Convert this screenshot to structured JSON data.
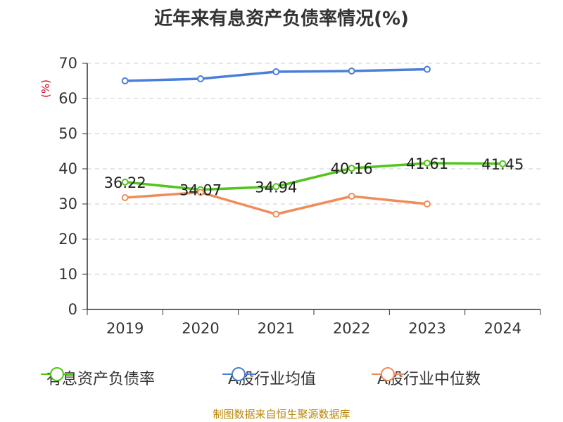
{
  "chart_data": {
    "type": "line",
    "title": "近年来有息资产负债率情况(%)",
    "ylabel": "(%)",
    "ylim": [
      0,
      70
    ],
    "yticks": [
      0,
      10,
      20,
      30,
      40,
      50,
      60,
      70
    ],
    "categories": [
      "2019",
      "2020",
      "2021",
      "2022",
      "2023",
      "2024"
    ],
    "grid": true,
    "legend_position": "bottom",
    "series": [
      {
        "name": "有息资产负债率",
        "color": "#52c41a",
        "values": [
          36.22,
          34.07,
          34.94,
          40.16,
          41.61,
          41.45
        ],
        "data_labels": [
          "36.22",
          "34.07",
          "34.94",
          "40.16",
          "41.61",
          "41.45"
        ]
      },
      {
        "name": "A股行业均值",
        "color": "#4a7ed8",
        "values": [
          65.0,
          65.6,
          67.6,
          67.8,
          68.3,
          null
        ]
      },
      {
        "name": "A股行业中位数",
        "color": "#f08c5a",
        "values": [
          31.8,
          33.3,
          27.1,
          32.2,
          30.0,
          null
        ]
      }
    ]
  },
  "source_text": "制图数据来自恒生聚源数据库"
}
